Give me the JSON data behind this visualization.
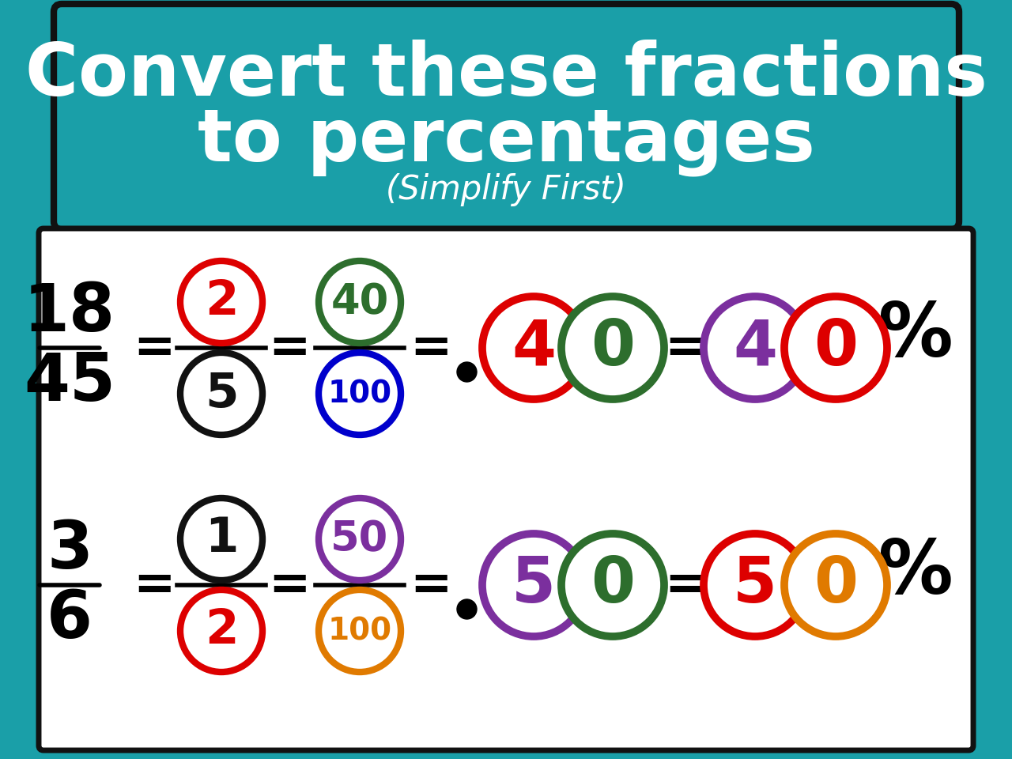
{
  "bg_color": "#1a9fa8",
  "title_box_color": "#1a9fa8",
  "title_box_border": "#111111",
  "title_line1": "Convert these fractions",
  "title_line2": "to percentages",
  "title_subtitle": "(Simplify First)",
  "title_color": "white",
  "content_bg": "white",
  "content_border": "#111111",
  "row1": {
    "frac_num": "18",
    "frac_den": "45",
    "chip1_num": "2",
    "chip1_num_color": "#dd0000",
    "chip1_border_color": "#dd0000",
    "chip1_den": "5",
    "chip1_den_color": "#111111",
    "chip1_den_border": "#111111",
    "chip2_num": "40",
    "chip2_num_color": "#2d6e2d",
    "chip2_border_color": "#2d6e2d",
    "chip2_den": "100",
    "chip2_den_color": "#0000cc",
    "chip2_den_border": "#0000cc",
    "dec_digit1": "4",
    "dec_digit1_color": "#dd0000",
    "dec_digit1_border": "#dd0000",
    "dec_digit2": "0",
    "dec_digit2_color": "#2d6e2d",
    "dec_digit2_border": "#2d6e2d",
    "pct_digit1": "4",
    "pct_digit1_color": "#7b2f9e",
    "pct_digit1_border": "#7b2f9e",
    "pct_digit2": "0",
    "pct_digit2_color": "#dd0000",
    "pct_digit2_border": "#dd0000"
  },
  "row2": {
    "frac_num": "3",
    "frac_den": "6",
    "chip1_num": "1",
    "chip1_num_color": "#111111",
    "chip1_border_color": "#111111",
    "chip1_den": "2",
    "chip1_den_color": "#dd0000",
    "chip1_den_border": "#dd0000",
    "chip2_num": "50",
    "chip2_num_color": "#7b2f9e",
    "chip2_border_color": "#7b2f9e",
    "chip2_den": "100",
    "chip2_den_color": "#e07a00",
    "chip2_den_border": "#e07a00",
    "dec_digit1": "5",
    "dec_digit1_color": "#7b2f9e",
    "dec_digit1_border": "#7b2f9e",
    "dec_digit2": "0",
    "dec_digit2_color": "#2d6e2d",
    "dec_digit2_border": "#2d6e2d",
    "pct_digit1": "5",
    "pct_digit1_color": "#dd0000",
    "pct_digit1_border": "#dd0000",
    "pct_digit2": "0",
    "pct_digit2_color": "#e07a00",
    "pct_digit2_border": "#e07a00"
  }
}
